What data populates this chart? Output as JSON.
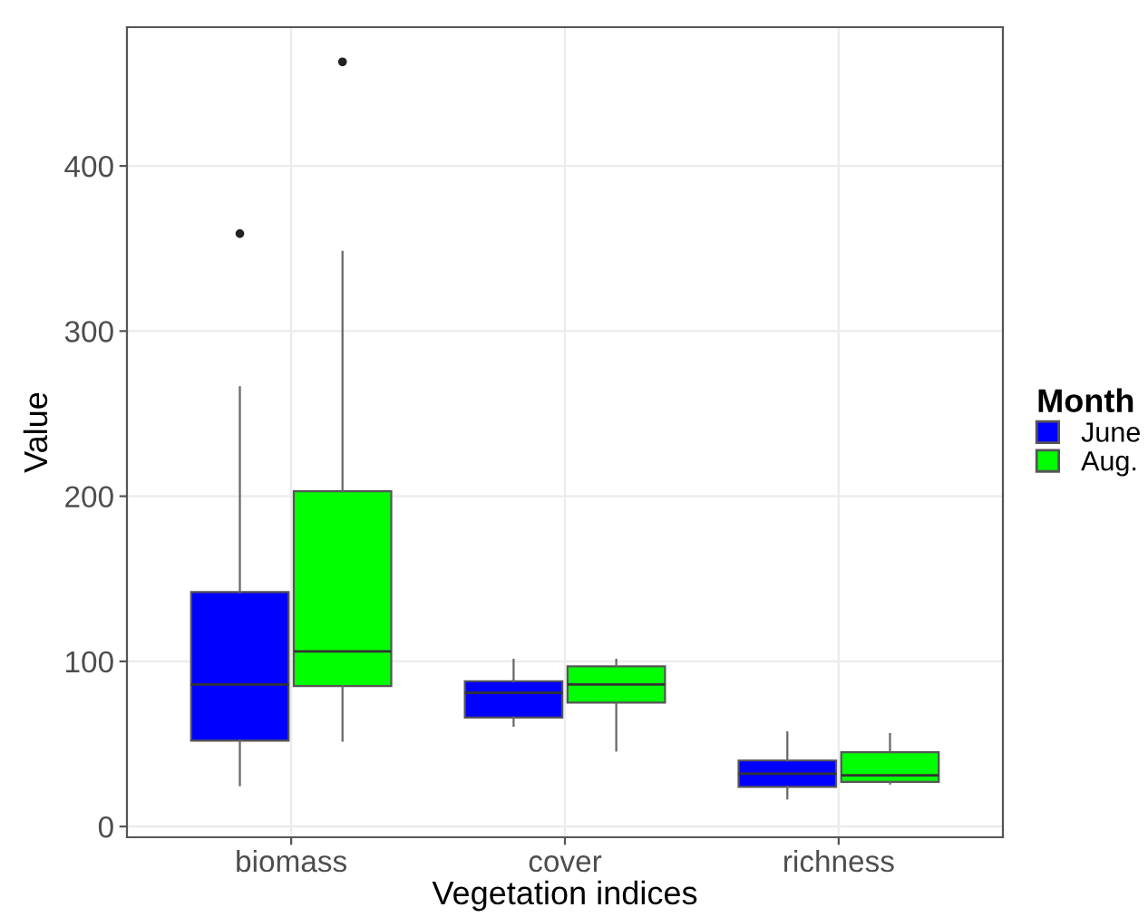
{
  "chart_data": {
    "type": "box",
    "xlabel": "Vegetation indices",
    "ylabel": "Value",
    "legend_title": "Month",
    "categories": [
      "biomass",
      "cover",
      "richness"
    ],
    "ylim": [
      -6.5,
      484
    ],
    "yticks": [
      0,
      100,
      200,
      300,
      400
    ],
    "grid": true,
    "legend": "right",
    "series": [
      {
        "name": "June",
        "color": "#0000ff",
        "boxes": [
          {
            "low": 25,
            "q1": 52,
            "median": 86,
            "q3": 142,
            "high": 266,
            "outliers": [
              359
            ]
          },
          {
            "low": 61,
            "q1": 66,
            "median": 81,
            "q3": 88,
            "high": 101
          },
          {
            "low": 17,
            "q1": 24,
            "median": 32,
            "q3": 40,
            "high": 57
          }
        ]
      },
      {
        "name": "Aug.",
        "color": "#00ff00",
        "boxes": [
          {
            "low": 52,
            "q1": 85,
            "median": 106,
            "q3": 203,
            "high": 348,
            "outliers": [
              463
            ]
          },
          {
            "low": 46,
            "q1": 75,
            "median": 86,
            "q3": 97,
            "high": 101
          },
          {
            "low": 26,
            "q1": 27,
            "median": 31,
            "q3": 45,
            "high": 56
          }
        ]
      }
    ]
  }
}
